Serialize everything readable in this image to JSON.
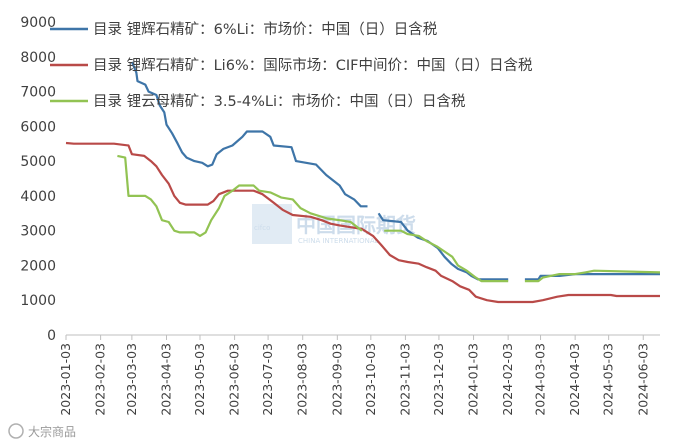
{
  "chart_data": {
    "type": "line",
    "title": "",
    "xlabel": "",
    "ylabel": "",
    "ylim": [
      0,
      9000
    ],
    "yticks": [
      0,
      1000,
      2000,
      3000,
      4000,
      5000,
      6000,
      7000,
      8000,
      9000
    ],
    "xlim": [
      "2023-01-03",
      "2024-06-18"
    ],
    "xticks": [
      "2023-01-03",
      "2023-02-03",
      "2023-03-03",
      "2023-04-03",
      "2023-05-03",
      "2023-06-03",
      "2023-07-03",
      "2023-08-03",
      "2023-09-03",
      "2023-10-03",
      "2023-11-03",
      "2023-12-03",
      "2024-01-03",
      "2024-02-03",
      "2024-03-03",
      "2024-04-03",
      "2024-05-03",
      "2024-06-03"
    ],
    "grid": false,
    "legend_position": "top-left",
    "series": [
      {
        "name": "目录 锂辉石精矿：6%Li：市场价：中国（日）日含税",
        "color": "#3E75A8",
        "points": [
          [
            "2023-03-03",
            7850
          ],
          [
            "2023-03-05",
            7700
          ],
          [
            "2023-03-07",
            7550
          ],
          [
            "2023-03-08",
            7300
          ],
          [
            "2023-03-15",
            7200
          ],
          [
            "2023-03-18",
            7000
          ],
          [
            "2023-03-25",
            6900
          ],
          [
            "2023-03-28",
            6600
          ],
          [
            "2023-04-01",
            6400
          ],
          [
            "2023-04-03",
            6050
          ],
          [
            "2023-04-08",
            5800
          ],
          [
            "2023-04-13",
            5500
          ],
          [
            "2023-04-17",
            5250
          ],
          [
            "2023-04-21",
            5100
          ],
          [
            "2023-04-28",
            5000
          ],
          [
            "2023-05-05",
            4950
          ],
          [
            "2023-05-10",
            4850
          ],
          [
            "2023-05-14",
            4900
          ],
          [
            "2023-05-18",
            5200
          ],
          [
            "2023-05-24",
            5350
          ],
          [
            "2023-06-01",
            5450
          ],
          [
            "2023-06-10",
            5700
          ],
          [
            "2023-06-14",
            5850
          ],
          [
            "2023-06-28",
            5850
          ],
          [
            "2023-07-05",
            5700
          ],
          [
            "2023-07-08",
            5450
          ],
          [
            "2023-07-24",
            5400
          ],
          [
            "2023-07-28",
            5000
          ],
          [
            "2023-08-15",
            4900
          ],
          [
            "2023-08-24",
            4600
          ],
          [
            "2023-08-30",
            4450
          ],
          [
            "2023-09-05",
            4300
          ],
          [
            "2023-09-10",
            4050
          ],
          [
            "2023-09-18",
            3900
          ],
          [
            "2023-09-24",
            3700
          ],
          [
            "2023-09-30",
            3700
          ],
          null,
          [
            "2023-10-10",
            3500
          ],
          [
            "2023-10-14",
            3300
          ],
          [
            "2023-10-30",
            3250
          ],
          [
            "2023-11-05",
            3000
          ],
          [
            "2023-11-14",
            2800
          ],
          [
            "2023-11-23",
            2700
          ],
          [
            "2023-12-02",
            2500
          ],
          [
            "2023-12-08",
            2250
          ],
          [
            "2023-12-14",
            2050
          ],
          [
            "2023-12-20",
            1900
          ],
          [
            "2023-12-28",
            1800
          ],
          [
            "2024-01-01",
            1700
          ],
          [
            "2024-01-07",
            1600
          ],
          [
            "2024-02-03",
            1600
          ],
          null,
          [
            "2024-02-18",
            1600
          ],
          [
            "2024-03-01",
            1600
          ],
          [
            "2024-03-03",
            1700
          ],
          [
            "2024-03-20",
            1700
          ],
          [
            "2024-04-03",
            1750
          ],
          [
            "2024-04-15",
            1750
          ],
          [
            "2024-04-20",
            1750
          ],
          [
            "2024-05-03",
            1750
          ],
          [
            "2024-06-18",
            1750
          ]
        ]
      },
      {
        "name": "目录 锂辉石精矿：Li6%：国际市场：CIF中间价：中国（日）日含税",
        "color": "#B94A48",
        "points": [
          [
            "2023-01-03",
            5520
          ],
          [
            "2023-01-10",
            5500
          ],
          [
            "2023-02-15",
            5500
          ],
          [
            "2023-02-28",
            5450
          ],
          [
            "2023-03-03",
            5200
          ],
          [
            "2023-03-14",
            5150
          ],
          [
            "2023-03-20",
            5000
          ],
          [
            "2023-03-25",
            4850
          ],
          [
            "2023-03-30",
            4600
          ],
          [
            "2023-04-05",
            4350
          ],
          [
            "2023-04-10",
            4000
          ],
          [
            "2023-04-15",
            3800
          ],
          [
            "2023-04-20",
            3750
          ],
          [
            "2023-05-10",
            3750
          ],
          [
            "2023-05-15",
            3850
          ],
          [
            "2023-05-20",
            4050
          ],
          [
            "2023-05-28",
            4150
          ],
          [
            "2023-06-20",
            4150
          ],
          [
            "2023-06-28",
            4050
          ],
          [
            "2023-07-08",
            3800
          ],
          [
            "2023-07-16",
            3600
          ],
          [
            "2023-07-25",
            3450
          ],
          [
            "2023-08-10",
            3400
          ],
          [
            "2023-08-20",
            3300
          ],
          [
            "2023-08-28",
            3200
          ],
          [
            "2023-09-05",
            3150
          ],
          [
            "2023-09-15",
            3100
          ],
          [
            "2023-09-25",
            3050
          ],
          [
            "2023-10-05",
            2850
          ],
          [
            "2023-10-12",
            2600
          ],
          [
            "2023-10-20",
            2300
          ],
          [
            "2023-10-28",
            2150
          ],
          [
            "2023-11-05",
            2100
          ],
          [
            "2023-11-15",
            2050
          ],
          [
            "2023-11-22",
            1950
          ],
          [
            "2023-11-30",
            1850
          ],
          [
            "2023-12-05",
            1700
          ],
          [
            "2023-12-15",
            1550
          ],
          [
            "2023-12-22",
            1400
          ],
          [
            "2023-12-30",
            1300
          ],
          [
            "2024-01-05",
            1100
          ],
          [
            "2024-01-15",
            1000
          ],
          [
            "2024-01-25",
            950
          ],
          [
            "2024-02-25",
            950
          ],
          [
            "2024-03-05",
            1000
          ],
          [
            "2024-03-18",
            1100
          ],
          [
            "2024-03-28",
            1150
          ],
          [
            "2024-04-05",
            1150
          ],
          [
            "2024-05-05",
            1150
          ],
          [
            "2024-05-10",
            1120
          ],
          [
            "2024-06-18",
            1120
          ]
        ]
      },
      {
        "name": "目录 锂云母精矿：3.5-4%Li：市场价：中国（日）日含税",
        "color": "#92C353",
        "points": [
          [
            "2023-02-18",
            5150
          ],
          [
            "2023-02-25",
            5100
          ],
          [
            "2023-02-28",
            4000
          ],
          [
            "2023-03-15",
            4000
          ],
          [
            "2023-03-20",
            3900
          ],
          [
            "2023-03-25",
            3700
          ],
          [
            "2023-03-30",
            3300
          ],
          [
            "2023-04-05",
            3250
          ],
          [
            "2023-04-10",
            3000
          ],
          [
            "2023-04-15",
            2950
          ],
          [
            "2023-04-28",
            2950
          ],
          [
            "2023-05-03",
            2850
          ],
          [
            "2023-05-08",
            2950
          ],
          [
            "2023-05-13",
            3300
          ],
          [
            "2023-05-20",
            3650
          ],
          [
            "2023-05-25",
            4000
          ],
          [
            "2023-06-01",
            4150
          ],
          [
            "2023-06-07",
            4300
          ],
          [
            "2023-06-20",
            4300
          ],
          [
            "2023-06-25",
            4150
          ],
          [
            "2023-07-05",
            4100
          ],
          [
            "2023-07-15",
            3950
          ],
          [
            "2023-07-25",
            3900
          ],
          [
            "2023-08-01",
            3650
          ],
          [
            "2023-08-10",
            3500
          ],
          [
            "2023-08-25",
            3350
          ],
          [
            "2023-09-05",
            3300
          ],
          [
            "2023-09-15",
            3250
          ],
          [
            "2023-09-25",
            3000
          ],
          null,
          [
            "2023-10-15",
            3000
          ],
          [
            "2023-10-30",
            3000
          ],
          [
            "2023-11-05",
            2900
          ],
          [
            "2023-11-15",
            2850
          ],
          [
            "2023-11-22",
            2700
          ],
          [
            "2023-12-01",
            2550
          ],
          [
            "2023-12-08",
            2400
          ],
          [
            "2023-12-15",
            2250
          ],
          [
            "2023-12-20",
            2000
          ],
          [
            "2023-12-28",
            1850
          ],
          [
            "2024-01-05",
            1650
          ],
          [
            "2024-01-10",
            1550
          ],
          [
            "2024-02-03",
            1550
          ],
          null,
          [
            "2024-02-18",
            1550
          ],
          [
            "2024-03-01",
            1550
          ],
          [
            "2024-03-05",
            1650
          ],
          [
            "2024-03-20",
            1750
          ],
          [
            "2024-04-03",
            1750
          ],
          [
            "2024-04-12",
            1800
          ],
          [
            "2024-04-20",
            1850
          ],
          [
            "2024-06-18",
            1800
          ]
        ]
      }
    ]
  },
  "watermark": {
    "brand_cn": "中国国际期货",
    "brand_en": "CHINA INTERNATIONAL",
    "mark": "cifco"
  },
  "footer": {
    "source": "大宗商品"
  }
}
